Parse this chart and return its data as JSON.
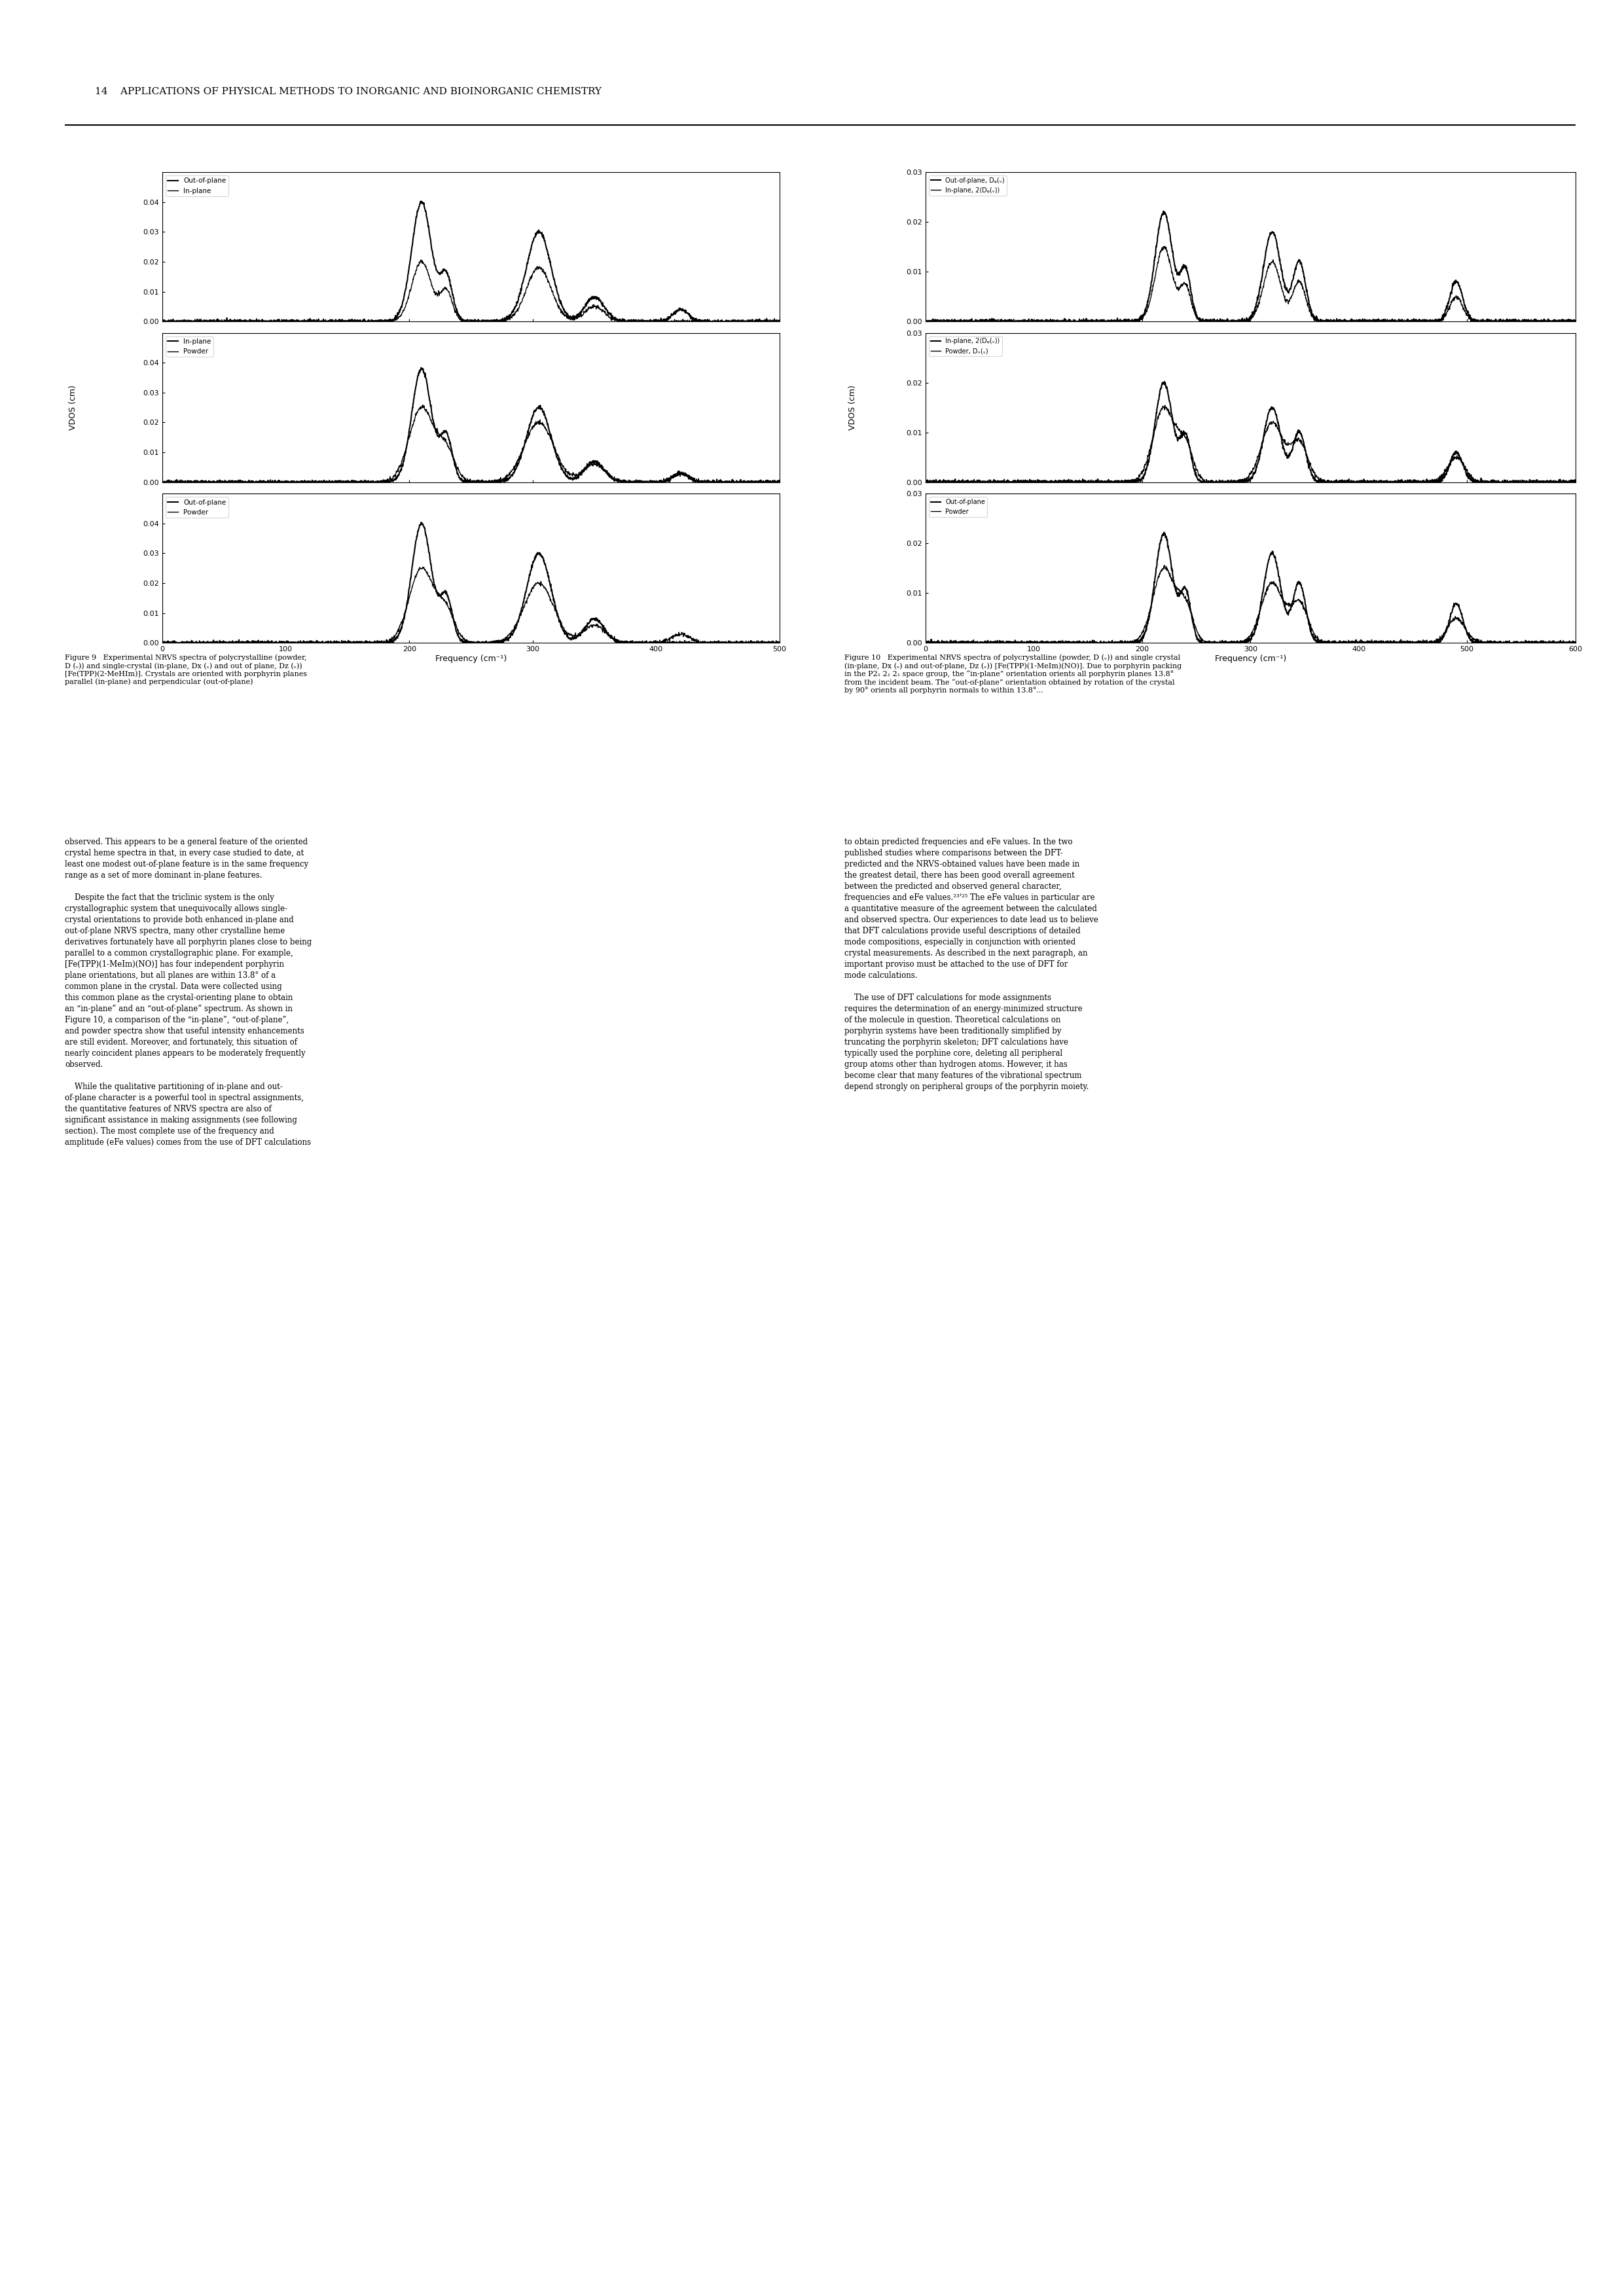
{
  "page_header": "14    APPLICATIONS OF PHYSICAL METHODS TO INORGANIC AND BIOINORGANIC CHEMISTRY",
  "fig9_caption": "Figure 9   Experimental NRVS spectra of polycrystalline (powder, D (ᵥ)) and single-crystal (in-plane, Dₓ (ᵥ) and out of plane, Dᵩ (ᵥ)) [Fe(TPP)(2-MeHIm)]. Crystals are oriented with porphyrin planes parallel (in-plane) and perpendicular (out-of-plane)",
  "fig10_caption": "Figure 10   Experimental NRVS spectra of polycrystalline (powder, D (ᵥ)) and single crystal (in-plane, Dₓ (ᵥ) and out-of-plane, Dᵩ (ᵥ)) [Fe(TPP)(1-MeIm)(NO)]. Due to porphyrin packing in the P2₁ 2₁ 2₁ space group, the “in-plane” orientation orients all porphyrin planes 13.8° from the incident beam. The “out-of-plane” orientation obtained by rotation of the crystal by 90° orients all porphyrin normals to within 13.8°...",
  "ylabel": "VDOS (cm)",
  "xlabel": "Frequency (cm⁻¹)",
  "fig9_xlim": [
    0,
    500
  ],
  "fig9_xticks": [
    0,
    100,
    200,
    300,
    400,
    500
  ],
  "fig10_xlim": [
    0,
    600
  ],
  "fig10_xticks": [
    0,
    100,
    200,
    300,
    400,
    500,
    600
  ],
  "fig9_subplot1_ylim": [
    0,
    0.05
  ],
  "fig9_subplot1_yticks": [
    0,
    0.01,
    0.02,
    0.03,
    0.04
  ],
  "fig9_subplot2_ylim": [
    0,
    0.05
  ],
  "fig9_subplot2_yticks": [
    0,
    0.01,
    0.02,
    0.03,
    0.04
  ],
  "fig9_subplot3_ylim": [
    0,
    0.05
  ],
  "fig9_subplot3_yticks": [
    0,
    0.01,
    0.02,
    0.03,
    0.04
  ],
  "fig10_subplot1_ylim": [
    0,
    0.03
  ],
  "fig10_subplot1_yticks": [
    0,
    0.01,
    0.02,
    0.03
  ],
  "fig10_subplot2_ylim": [
    0,
    0.03
  ],
  "fig10_subplot2_yticks": [
    0,
    0.01,
    0.02,
    0.03
  ],
  "fig10_subplot3_ylim": [
    0,
    0.03
  ],
  "fig10_subplot3_yticks": [
    0,
    0.01,
    0.02,
    0.03
  ],
  "line_color": "#000000",
  "background_color": "#ffffff",
  "fig9_sub1_legend": [
    "Out-of-plane",
    "In-plane"
  ],
  "fig9_sub2_legend": [
    "In-plane",
    "Powder"
  ],
  "fig9_sub3_legend": [
    "Out-of-plane",
    "Powder"
  ],
  "fig10_sub1_legend": [
    "Out-of-plane, Dᵩ(ᵥ)",
    "In-plane, 2⟨Dᵩ(ᵥ)⟩"
  ],
  "fig10_sub2_legend": [
    "In-plane, 2⟨Dᵩ(ᵥ)⟩",
    "Powder, Dₓ(ᵥ)"
  ],
  "fig10_sub3_legend": [
    "Out-of-plane",
    "Powder"
  ]
}
